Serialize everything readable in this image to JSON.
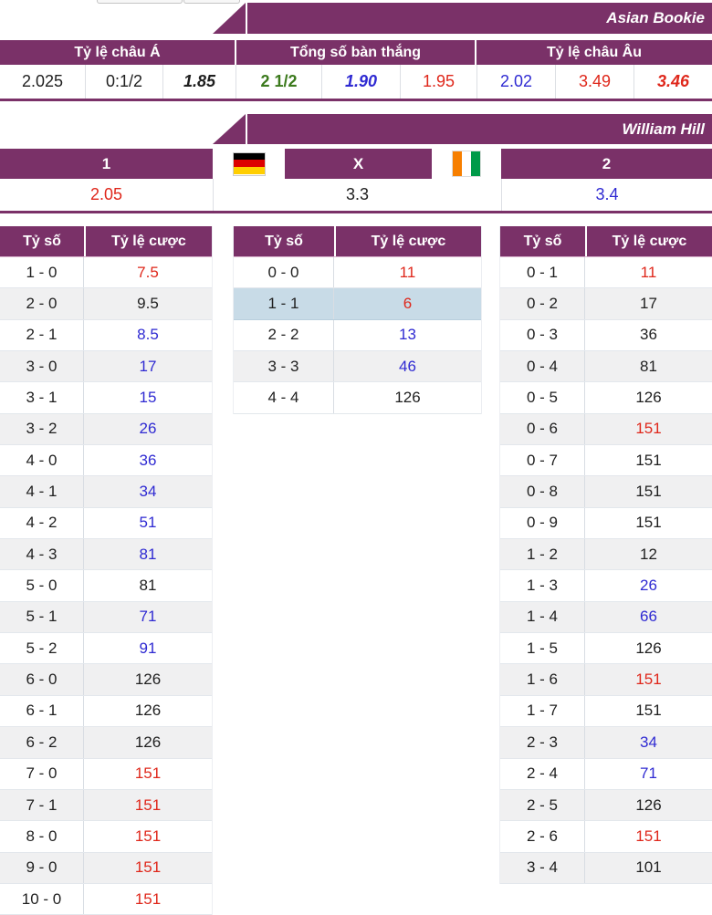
{
  "palette": {
    "brand_purple": "#7a3168",
    "odds_red": "#df271b",
    "odds_blue": "#2f2ad2",
    "odds_black": "#1f1f1f",
    "odds_green": "#3c7a1d",
    "highlight_row": "#c8dbe7",
    "stripe_row": "#f0f0f1"
  },
  "asian": {
    "banner": "Asian Bookie",
    "headers": [
      "Tỷ lệ châu Á",
      "Tổng số bàn thắng",
      "Tỷ lệ châu Âu"
    ],
    "odds": [
      {
        "value": "2.025",
        "style": "black"
      },
      {
        "value": "0:1/2",
        "style": "black"
      },
      {
        "value": "1.85",
        "style": "black-bold-italic"
      },
      {
        "value": "2 1/2",
        "style": "green-bold"
      },
      {
        "value": "1.90",
        "style": "blue-bold-italic"
      },
      {
        "value": "1.95",
        "style": "red"
      },
      {
        "value": "2.02",
        "style": "blue"
      },
      {
        "value": "3.49",
        "style": "red"
      },
      {
        "value": "3.46",
        "style": "red-bold-italic"
      }
    ]
  },
  "william_hill": {
    "banner": "William Hill",
    "headers": {
      "home": "1",
      "draw": "X",
      "away": "2"
    },
    "flags": {
      "home": "germany",
      "away": "ivory-coast"
    },
    "odds": [
      {
        "value": "2.05",
        "style": "red"
      },
      {
        "value": "3.3",
        "style": "black"
      },
      {
        "value": "3.4",
        "style": "blue"
      }
    ]
  },
  "score_tables": [
    {
      "headers": [
        "Tỷ số",
        "Tỷ lệ cược"
      ],
      "rows": [
        {
          "score": "1 - 0",
          "odds": "7.5",
          "color": "red"
        },
        {
          "score": "2 - 0",
          "odds": "9.5",
          "color": "black"
        },
        {
          "score": "2 - 1",
          "odds": "8.5",
          "color": "blue"
        },
        {
          "score": "3 - 0",
          "odds": "17",
          "color": "blue"
        },
        {
          "score": "3 - 1",
          "odds": "15",
          "color": "blue"
        },
        {
          "score": "3 - 2",
          "odds": "26",
          "color": "blue"
        },
        {
          "score": "4 - 0",
          "odds": "36",
          "color": "blue"
        },
        {
          "score": "4 - 1",
          "odds": "34",
          "color": "blue"
        },
        {
          "score": "4 - 2",
          "odds": "51",
          "color": "blue"
        },
        {
          "score": "4 - 3",
          "odds": "81",
          "color": "blue"
        },
        {
          "score": "5 - 0",
          "odds": "81",
          "color": "black"
        },
        {
          "score": "5 - 1",
          "odds": "71",
          "color": "blue"
        },
        {
          "score": "5 - 2",
          "odds": "91",
          "color": "blue"
        },
        {
          "score": "6 - 0",
          "odds": "126",
          "color": "black"
        },
        {
          "score": "6 - 1",
          "odds": "126",
          "color": "black"
        },
        {
          "score": "6 - 2",
          "odds": "126",
          "color": "black"
        },
        {
          "score": "7 - 0",
          "odds": "151",
          "color": "red"
        },
        {
          "score": "7 - 1",
          "odds": "151",
          "color": "red"
        },
        {
          "score": "8 - 0",
          "odds": "151",
          "color": "red"
        },
        {
          "score": "9 - 0",
          "odds": "151",
          "color": "red"
        },
        {
          "score": "10 - 0",
          "odds": "151",
          "color": "red"
        }
      ]
    },
    {
      "headers": [
        "Tỷ số",
        "Tỷ lệ cược"
      ],
      "rows": [
        {
          "score": "0 - 0",
          "odds": "11",
          "color": "red"
        },
        {
          "score": "1 - 1",
          "odds": "6",
          "color": "red",
          "highlight": true
        },
        {
          "score": "2 - 2",
          "odds": "13",
          "color": "blue"
        },
        {
          "score": "3 - 3",
          "odds": "46",
          "color": "blue"
        },
        {
          "score": "4 - 4",
          "odds": "126",
          "color": "black"
        }
      ]
    },
    {
      "headers": [
        "Tỷ số",
        "Tỷ lệ cược"
      ],
      "rows": [
        {
          "score": "0 - 1",
          "odds": "11",
          "color": "red"
        },
        {
          "score": "0 - 2",
          "odds": "17",
          "color": "black"
        },
        {
          "score": "0 - 3",
          "odds": "36",
          "color": "black"
        },
        {
          "score": "0 - 4",
          "odds": "81",
          "color": "black"
        },
        {
          "score": "0 - 5",
          "odds": "126",
          "color": "black"
        },
        {
          "score": "0 - 6",
          "odds": "151",
          "color": "red"
        },
        {
          "score": "0 - 7",
          "odds": "151",
          "color": "black"
        },
        {
          "score": "0 - 8",
          "odds": "151",
          "color": "black"
        },
        {
          "score": "0 - 9",
          "odds": "151",
          "color": "black"
        },
        {
          "score": "1 - 2",
          "odds": "12",
          "color": "black"
        },
        {
          "score": "1 - 3",
          "odds": "26",
          "color": "blue"
        },
        {
          "score": "1 - 4",
          "odds": "66",
          "color": "blue"
        },
        {
          "score": "1 - 5",
          "odds": "126",
          "color": "black"
        },
        {
          "score": "1 - 6",
          "odds": "151",
          "color": "red"
        },
        {
          "score": "1 - 7",
          "odds": "151",
          "color": "black"
        },
        {
          "score": "2 - 3",
          "odds": "34",
          "color": "blue"
        },
        {
          "score": "2 - 4",
          "odds": "71",
          "color": "blue"
        },
        {
          "score": "2 - 5",
          "odds": "126",
          "color": "black"
        },
        {
          "score": "2 - 6",
          "odds": "151",
          "color": "red"
        },
        {
          "score": "3 - 4",
          "odds": "101",
          "color": "black"
        }
      ]
    }
  ]
}
